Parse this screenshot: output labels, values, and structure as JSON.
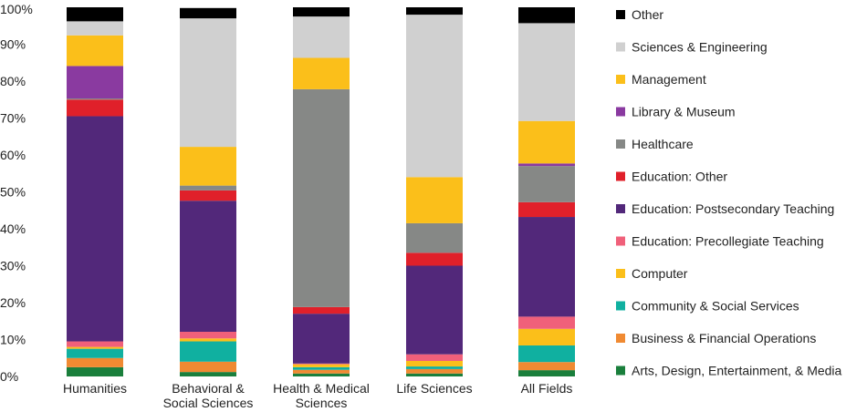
{
  "chart_data": {
    "type": "bar",
    "stacked": true,
    "ylim": [
      0,
      100
    ],
    "ytick_labels": [
      "0%",
      "10%",
      "20%",
      "30%",
      "40%",
      "50%",
      "60%",
      "70%",
      "80%",
      "90%",
      "100%"
    ],
    "categories": [
      [
        "Humanities"
      ],
      [
        "Behavioral &",
        "Social Sciences"
      ],
      [
        "Health & Medical",
        "Sciences"
      ],
      [
        "Life Sciences"
      ],
      [
        "All Fields"
      ]
    ],
    "legend_position": "right",
    "series": [
      {
        "name": "Arts, Design, Entertainment, & Media",
        "color": "#1a7f3c",
        "values": [
          2.5,
          1.2,
          0.8,
          0.8,
          1.7
        ]
      },
      {
        "name": "Business & Financial Operations",
        "color": "#f08a32",
        "values": [
          2.5,
          2.8,
          1.0,
          1.2,
          2.2
        ]
      },
      {
        "name": "Community & Social Services",
        "color": "#10b0a0",
        "values": [
          2.5,
          5.5,
          0.7,
          0.7,
          4.5
        ]
      },
      {
        "name": "Computer",
        "color": "#fbbf1a",
        "values": [
          0.5,
          0.8,
          0.8,
          1.5,
          4.5
        ]
      },
      {
        "name": "Education: Precollegiate Teaching",
        "color": "#f0607a",
        "values": [
          1.5,
          1.8,
          0.2,
          1.8,
          3.3
        ]
      },
      {
        "name": "Education: Postsecondary Teaching",
        "color": "#52287a",
        "values": [
          61.0,
          35.5,
          13.5,
          24.0,
          27.0
        ]
      },
      {
        "name": "Education: Other",
        "color": "#e0202a",
        "values": [
          4.5,
          2.8,
          1.8,
          3.5,
          4.0
        ]
      },
      {
        "name": "Healthcare",
        "color": "#868886",
        "values": [
          0.3,
          1.3,
          59.0,
          8.0,
          9.8
        ]
      },
      {
        "name": "Library & Museum",
        "color": "#8a3aa0",
        "values": [
          8.8,
          0.0,
          0.0,
          0.0,
          0.7
        ]
      },
      {
        "name": "Management",
        "color": "#fbbf1a",
        "values": [
          8.3,
          10.5,
          8.5,
          12.5,
          11.5
        ]
      },
      {
        "name": "Sciences & Engineering",
        "color": "#d0d0d0",
        "values": [
          3.8,
          34.8,
          11.2,
          44.0,
          26.5
        ]
      },
      {
        "name": "Other",
        "color": "#000000",
        "values": [
          3.8,
          2.8,
          2.5,
          2.0,
          4.3
        ]
      }
    ]
  }
}
